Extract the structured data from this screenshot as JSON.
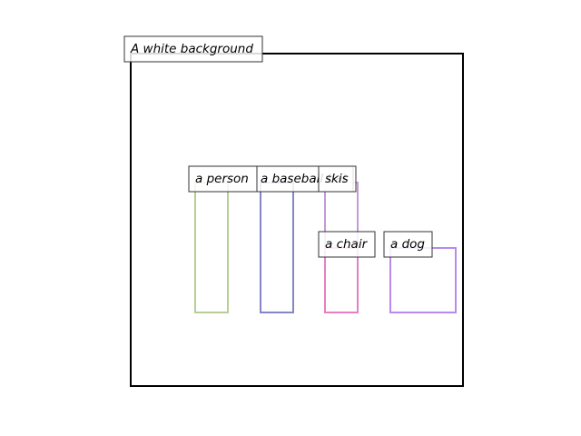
{
  "scene": {
    "label": "A white background",
    "frame_color": "#000000"
  },
  "objects": [
    {
      "label": "a person",
      "color": "#b5cf96"
    },
    {
      "label": "a baseball bat",
      "color": "#8585c8"
    },
    {
      "label": "skis",
      "color": "#c49ad6"
    },
    {
      "label": "a chair",
      "color": "#e67fc2"
    },
    {
      "label": "a dog",
      "color": "#b98aee"
    }
  ]
}
